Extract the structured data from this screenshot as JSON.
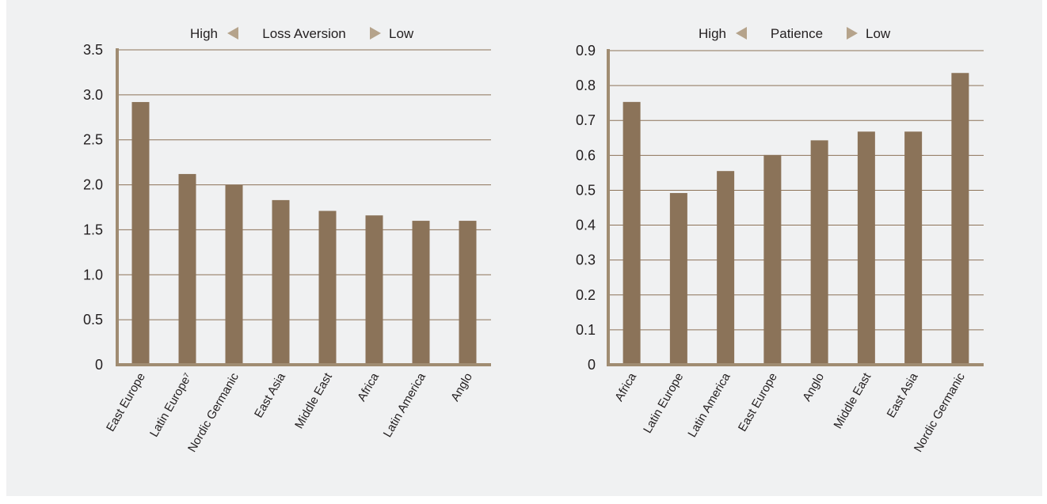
{
  "colors": {
    "bar": "#8b7359",
    "axis": "#a08c72",
    "grid": "#8c7258",
    "arrow": "#b5a38b",
    "text": "#231f20",
    "panel_bg": "#f0f1f2"
  },
  "chart_data": [
    {
      "type": "bar",
      "legend": {
        "left": "High",
        "center": "Loss Aversion",
        "right": "Low",
        "left_icon": "arrow-left-icon",
        "right_icon": "arrow-right-icon"
      },
      "categories": [
        "East Europe",
        "Latin Europe⁷",
        "Nordic Germanic",
        "East Asia",
        "Middle East",
        "Africa",
        "Latin America",
        "Anglo"
      ],
      "values": [
        2.92,
        2.12,
        2.0,
        1.83,
        1.71,
        1.66,
        1.6,
        1.6
      ],
      "yticks": [
        "0",
        "0.5",
        "1.0",
        "1.5",
        "2.0",
        "2.5",
        "3.0",
        "3.5"
      ],
      "ylim": [
        0,
        3.5
      ],
      "grid": true
    },
    {
      "type": "bar",
      "legend": {
        "left": "High",
        "center": "Patience",
        "right": "Low",
        "left_icon": "arrow-left-icon",
        "right_icon": "arrow-right-icon"
      },
      "categories": [
        "Africa",
        "Latin Europe",
        "Latin America",
        "East Europe",
        "Anglo",
        "Middle East",
        "East Asia",
        "Nordic Germanic"
      ],
      "values": [
        0.753,
        0.492,
        0.555,
        0.601,
        0.643,
        0.668,
        0.668,
        0.836
      ],
      "yticks": [
        "0",
        "0.1",
        "0.2",
        "0.3",
        "0.4",
        "0.5",
        "0.6",
        "0.7",
        "0.8",
        "0.9"
      ],
      "ylim": [
        0,
        0.9
      ],
      "grid": true
    }
  ]
}
